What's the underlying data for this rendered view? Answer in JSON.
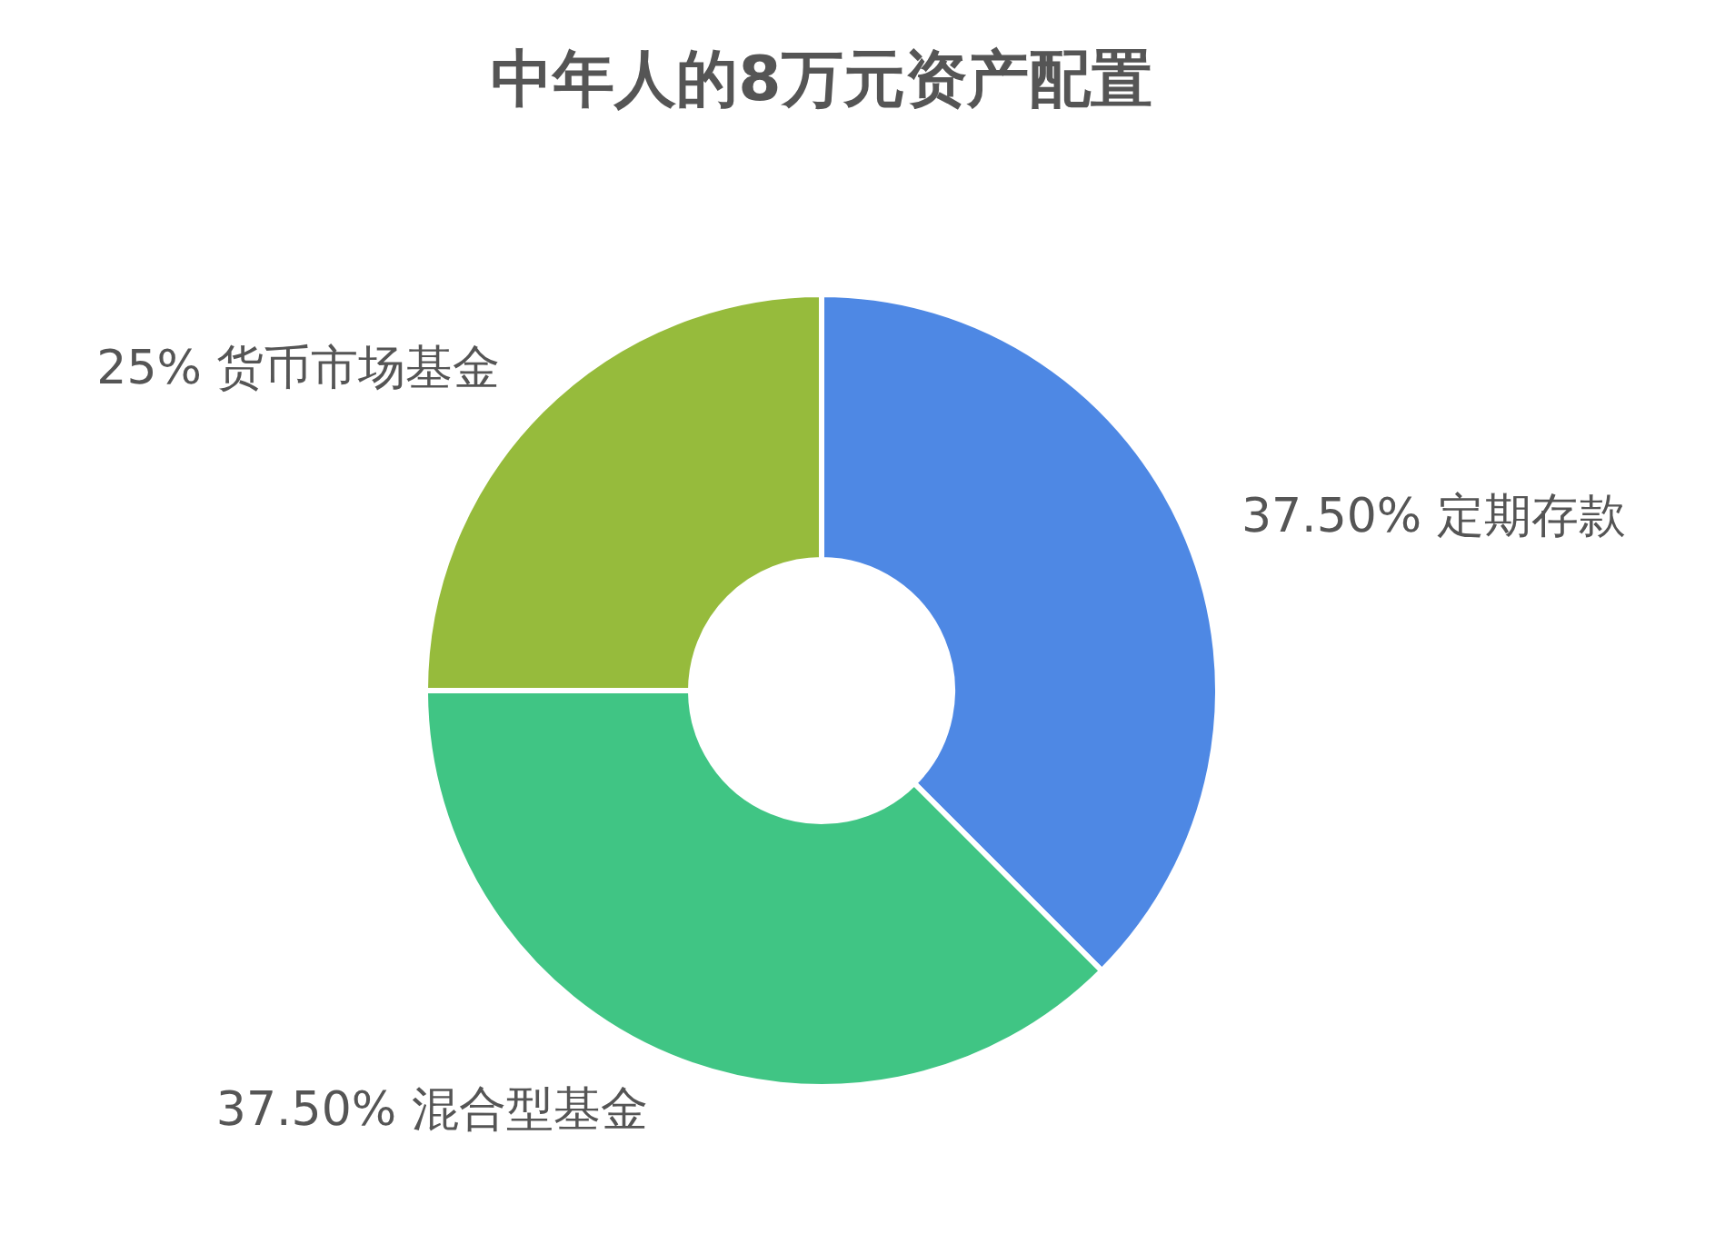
{
  "chart_data": {
    "type": "donut",
    "title": "中年人的8万元资产配置",
    "categories": [
      "定期存款",
      "混合型基金",
      "货币市场基金"
    ],
    "values": [
      37.5,
      37.5,
      25
    ],
    "value_labels": [
      "37.50%",
      "37.50%",
      "25%"
    ],
    "colors": [
      "#4e88e4",
      "#40c584",
      "#96bb3c"
    ]
  }
}
